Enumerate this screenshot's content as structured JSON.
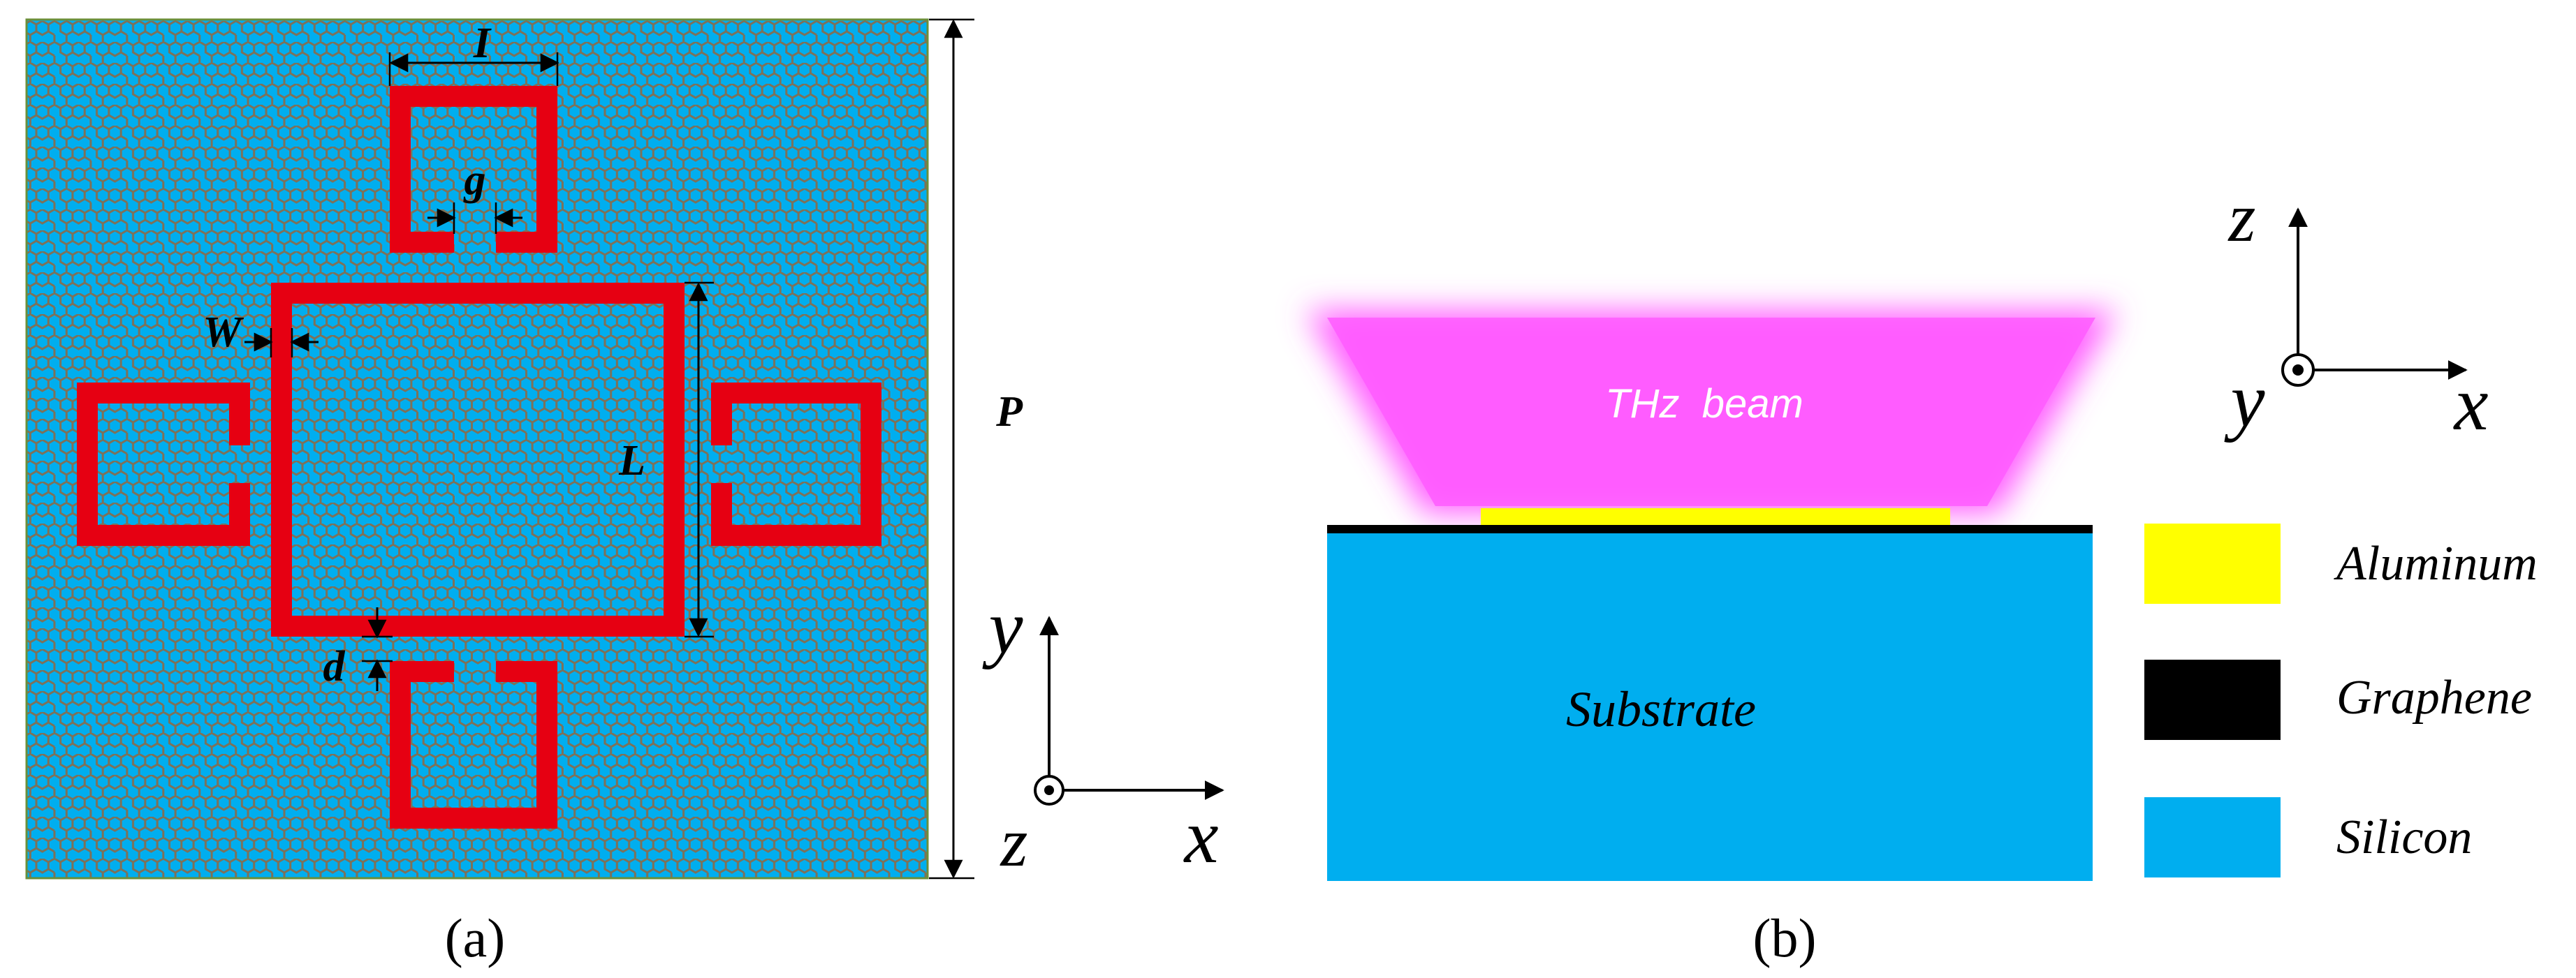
{
  "colors": {
    "substrate_blue": "#00AEEF",
    "ring_red": "#E60012",
    "lattice_brown": "#8B6A48",
    "beam_magenta": "#FF5CFF",
    "aluminum_yellow": "#FFFF00",
    "graphene_black": "#000000",
    "silicon_blue": "#00AEEF"
  },
  "panel_a": {
    "caption": "(a)",
    "dim_I": "I",
    "dim_g": "g",
    "dim_W": "W",
    "dim_L": "L",
    "dim_d": "d",
    "dim_P": "P",
    "axis_y": "y",
    "axis_x": "x",
    "axis_z": "z",
    "axis_icon": "out-of-plane-dot"
  },
  "panel_b": {
    "caption": "(b)",
    "beam_label": "THz  beam",
    "substrate_label": "Substrate",
    "axis_z": "z",
    "axis_y": "y",
    "axis_x": "x",
    "axis_icon": "out-of-plane-dot",
    "legend": [
      {
        "label": "Aluminum",
        "color": "#FFFF00"
      },
      {
        "label": "Graphene",
        "color": "#000000"
      },
      {
        "label": "Silicon",
        "color": "#00AEEF"
      }
    ]
  }
}
